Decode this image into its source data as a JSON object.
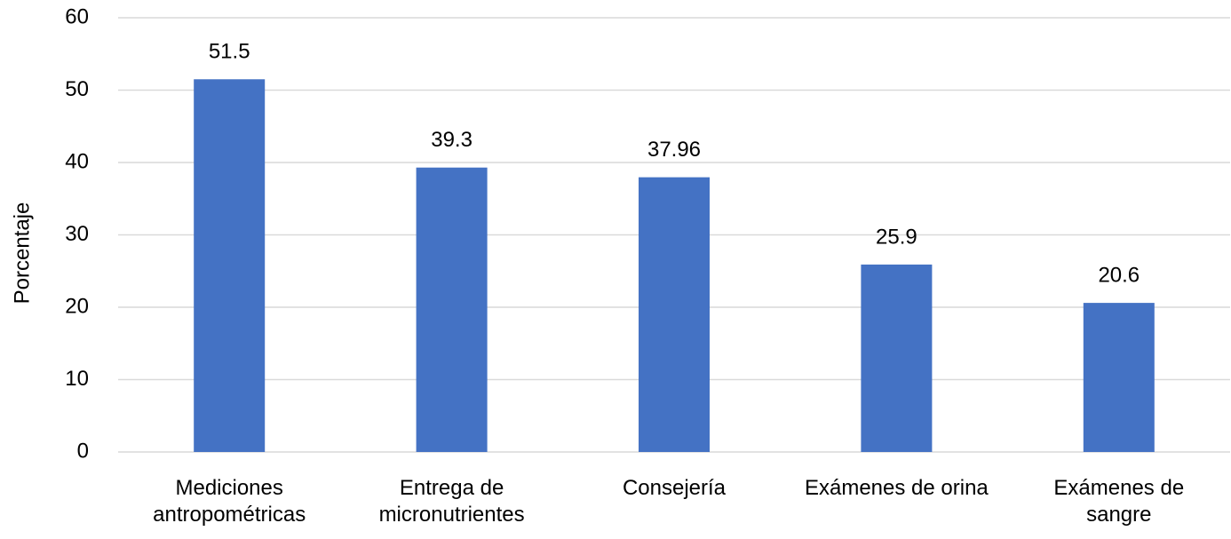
{
  "chart_data": {
    "type": "bar",
    "y_label": "Porcentaje",
    "categories": [
      "Mediciones antropométricas",
      "Entrega de micronutrientes",
      "Consejería",
      "Exámenes de orina",
      "Exámenes de sangre"
    ],
    "values": [
      51.5,
      39.3,
      37.96,
      25.9,
      20.6
    ],
    "color": "#4472c4",
    "ylim": [
      0,
      60
    ],
    "yticks": [
      0,
      10,
      20,
      30,
      40,
      50,
      60
    ],
    "grid": true
  }
}
